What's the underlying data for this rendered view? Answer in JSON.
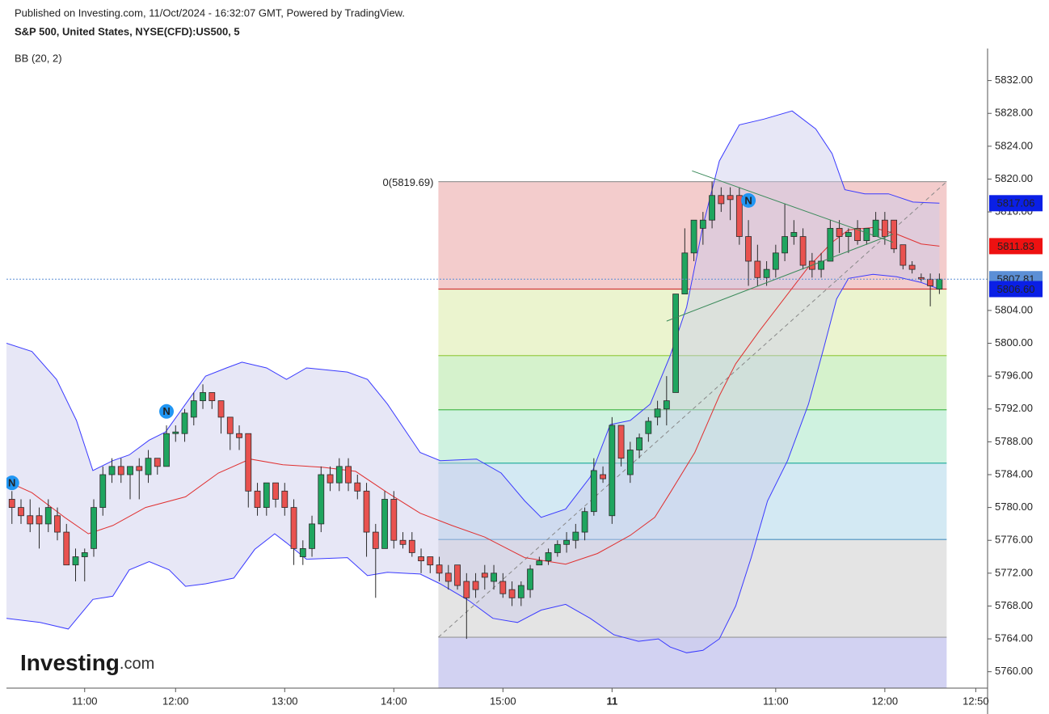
{
  "chart_data": {
    "type": "candlestick",
    "published": "Published on Investing.com, 11/Oct/2024 - 16:32:07 GMT, Powered by TradingView.",
    "title": "S&P 500, United States, NYSE(CFD):US500, 5",
    "indicator_label": "BB (20, 2)",
    "logo": {
      "name": "Investing",
      "suffix": ".com"
    },
    "up_color": "#1fa55f",
    "down_color": "#e9524f",
    "ohlc": [
      [
        5781,
        5782,
        5778,
        5780
      ],
      [
        5780,
        5781,
        5778,
        5779
      ],
      [
        5779,
        5781,
        5777,
        5778
      ],
      [
        5779,
        5780,
        5775,
        5778
      ],
      [
        5778,
        5781,
        5777,
        5780
      ],
      [
        5779,
        5780,
        5776,
        5777
      ],
      [
        5777,
        5778,
        5773,
        5773
      ],
      [
        5773,
        5775,
        5771,
        5774
      ],
      [
        5774,
        5775,
        5771,
        5774.5
      ],
      [
        5775,
        5781,
        5774,
        5780
      ],
      [
        5780,
        5785,
        5779,
        5784
      ],
      [
        5784,
        5786,
        5783,
        5785
      ],
      [
        5785,
        5786,
        5783,
        5784
      ],
      [
        5784,
        5785,
        5781,
        5785
      ],
      [
        5785,
        5786,
        5781,
        5784.5
      ],
      [
        5784,
        5787,
        5783,
        5786
      ],
      [
        5786,
        5786,
        5784,
        5785
      ],
      [
        5785,
        5790,
        5785,
        5789
      ],
      [
        5789,
        5790,
        5788,
        5789.2
      ],
      [
        5789,
        5792,
        5788,
        5791.5
      ],
      [
        5791,
        5794,
        5790,
        5793
      ],
      [
        5793,
        5795,
        5792,
        5794
      ],
      [
        5794,
        5794,
        5792,
        5793
      ],
      [
        5793,
        5793,
        5789,
        5791
      ],
      [
        5791,
        5791,
        5787,
        5789
      ],
      [
        5789,
        5790,
        5787,
        5788.5
      ],
      [
        5789,
        5789,
        5780,
        5782
      ],
      [
        5782,
        5783,
        5779,
        5780
      ],
      [
        5780,
        5783,
        5779,
        5783
      ],
      [
        5783,
        5783,
        5780,
        5781
      ],
      [
        5782,
        5783,
        5779,
        5780
      ],
      [
        5780,
        5781,
        5773,
        5775
      ],
      [
        5774,
        5776,
        5773,
        5775
      ],
      [
        5775,
        5779,
        5774,
        5778
      ],
      [
        5778,
        5785,
        5777,
        5784
      ],
      [
        5784,
        5785,
        5782,
        5783
      ],
      [
        5783,
        5786,
        5782,
        5785
      ],
      [
        5785,
        5786,
        5782,
        5783
      ],
      [
        5783,
        5784,
        5781,
        5782
      ],
      [
        5782,
        5783,
        5774,
        5777
      ],
      [
        5777,
        5778,
        5769,
        5775
      ],
      [
        5775,
        5782,
        5775,
        5781
      ],
      [
        5781,
        5782,
        5775,
        5776
      ],
      [
        5776,
        5777,
        5775,
        5775.5
      ],
      [
        5776,
        5777,
        5774,
        5774.5
      ],
      [
        5774,
        5775,
        5772,
        5773.5
      ],
      [
        5774,
        5774,
        5772,
        5773
      ],
      [
        5773,
        5774,
        5771,
        5772
      ],
      [
        5772,
        5773,
        5770,
        5771
      ],
      [
        5773,
        5773,
        5770,
        5770.5
      ],
      [
        5771,
        5772,
        5764,
        5769
      ],
      [
        5771,
        5772,
        5769,
        5770
      ],
      [
        5772,
        5773,
        5770,
        5771.5
      ],
      [
        5771,
        5773,
        5770,
        5772
      ],
      [
        5771,
        5772,
        5769,
        5769.5
      ],
      [
        5770,
        5771,
        5768,
        5769
      ],
      [
        5769,
        5771,
        5768,
        5770.5
      ],
      [
        5770,
        5773,
        5769,
        5772.5
      ],
      [
        5773,
        5774,
        5773,
        5773.5
      ],
      [
        5773.5,
        5775,
        5773,
        5774.5
      ],
      [
        5774.5,
        5776,
        5774,
        5775.5
      ],
      [
        5775.5,
        5777,
        5774.5,
        5776
      ],
      [
        5776,
        5778,
        5775,
        5777
      ],
      [
        5777,
        5780,
        5776,
        5779.5
      ],
      [
        5779.5,
        5786,
        5779,
        5784.5
      ],
      [
        5784,
        5785,
        5783,
        5783.5
      ],
      [
        5779,
        5791,
        5778,
        5790
      ],
      [
        5790,
        5790,
        5785,
        5786
      ],
      [
        5784,
        5788,
        5783,
        5787
      ],
      [
        5787,
        5789,
        5786,
        5788.5
      ],
      [
        5789,
        5791,
        5788,
        5790.5
      ],
      [
        5791,
        5793,
        5790,
        5792
      ],
      [
        5792,
        5796,
        5790,
        5793
      ],
      [
        5794,
        5806,
        5794,
        5806
      ],
      [
        5806,
        5814,
        5806,
        5811
      ],
      [
        5811,
        5815,
        5810,
        5815
      ],
      [
        5814,
        5816,
        5812,
        5815
      ],
      [
        5815,
        5819.69,
        5814,
        5818
      ],
      [
        5818,
        5819,
        5816,
        5817
      ],
      [
        5818,
        5819,
        5815,
        5817.5
      ],
      [
        5818,
        5819,
        5812,
        5813
      ],
      [
        5813,
        5815,
        5807,
        5810
      ],
      [
        5810,
        5812,
        5807,
        5808
      ],
      [
        5808,
        5810,
        5807,
        5809
      ],
      [
        5809,
        5812,
        5808,
        5811
      ],
      [
        5811,
        5817,
        5810,
        5813
      ],
      [
        5813,
        5815,
        5812,
        5813.5
      ],
      [
        5813,
        5814,
        5809,
        5809.5
      ],
      [
        5810,
        5811,
        5808,
        5809
      ],
      [
        5809,
        5811,
        5808,
        5810
      ],
      [
        5810,
        5815,
        5810,
        5814
      ],
      [
        5814,
        5815,
        5811,
        5813
      ],
      [
        5813,
        5814,
        5811,
        5813.5
      ],
      [
        5814,
        5815,
        5812,
        5812.5
      ],
      [
        5812.5,
        5814,
        5812,
        5814
      ],
      [
        5813,
        5816,
        5813,
        5815
      ],
      [
        5815,
        5816,
        5812,
        5813
      ],
      [
        5815,
        5815,
        5811,
        5811.5
      ],
      [
        5812,
        5812,
        5809,
        5809.5
      ],
      [
        5809.5,
        5810,
        5808.5,
        5809
      ],
      [
        5808,
        5808.5,
        5807.5,
        5807.8
      ],
      [
        5807.8,
        5808.5,
        5804.5,
        5807
      ],
      [
        5806.6,
        5808.5,
        5806,
        5807.81
      ]
    ],
    "bands": {
      "fill": "#c9c9ea",
      "upper": {
        "color": "#3a3aff",
        "x": [
          -0.6,
          2.2,
          4.9,
          7.1,
          8.9,
          11.1,
          12.9,
          15.1,
          16.9,
          19.1,
          21.3,
          23.6,
          25.3,
          28,
          30.2,
          32.4,
          36.9,
          39.1,
          41.3,
          44.9,
          47.1,
          51.1,
          53.8,
          56.4,
          58.2,
          60.9,
          63.6,
          65.8,
          68,
          70.2,
          72.4,
          74.2,
          76,
          77.8,
          80,
          82.7,
          85.8,
          88.4,
          90.2,
          91.6,
          93.8,
          96.4,
          99.1,
          102
        ],
        "values": [
          5800,
          5799,
          5795.6,
          5790.6,
          5784.5,
          5785.7,
          5786.4,
          5788.2,
          5789.2,
          5792.6,
          5796,
          5797,
          5797.7,
          5797,
          5795.6,
          5797,
          5796.5,
          5795.6,
          5792.6,
          5786.7,
          5785.7,
          5785.9,
          5784.2,
          5780.8,
          5778.8,
          5779.8,
          5783.7,
          5790.1,
          5790.6,
          5792.6,
          5798.5,
          5804.4,
          5814.3,
          5822.2,
          5826.6,
          5827.3,
          5828.3,
          5826.1,
          5823.1,
          5818.7,
          5818.2,
          5818.2,
          5817.2,
          5817.06
        ]
      },
      "middle": {
        "color": "#e03030",
        "x": [
          -0.6,
          2.2,
          5.8,
          8.4,
          11.1,
          14.7,
          19.1,
          22.7,
          26.2,
          29.8,
          34.2,
          37.8,
          41.3,
          44.9,
          48.4,
          52,
          56.4,
          60.9,
          64.4,
          68,
          70.7,
          72.4,
          75.1,
          77.8,
          79.6,
          82.2,
          84.9,
          87.6,
          90.2,
          92,
          94.7,
          97.3,
          100,
          102
        ],
        "values": [
          5783.2,
          5781.8,
          5778.8,
          5776.8,
          5777.8,
          5780,
          5781.3,
          5784.2,
          5785.9,
          5785.2,
          5784.9,
          5784.4,
          5781.8,
          5779.3,
          5777.8,
          5776.4,
          5773.9,
          5773.1,
          5774.4,
          5776.6,
          5778.8,
          5781.8,
          5786.7,
          5793.6,
          5797.5,
          5801.5,
          5805.4,
          5809.3,
          5812.3,
          5813.8,
          5814.1,
          5813.3,
          5812.1,
          5811.83
        ]
      },
      "lower": {
        "color": "#3a3aff",
        "x": [
          -0.6,
          3.1,
          6.2,
          8.9,
          11.1,
          12.9,
          15.1,
          17.3,
          19.1,
          21.3,
          24.4,
          26.7,
          28.9,
          30.2,
          32.4,
          36.9,
          39.1,
          41.3,
          44.9,
          47.1,
          50.2,
          52.9,
          55.6,
          58.2,
          60.9,
          63.6,
          66.2,
          68.9,
          71.1,
          72.4,
          74.2,
          76,
          77.8,
          79.6,
          81.3,
          83.1,
          85.3,
          87.6,
          89.3,
          90.7,
          92,
          94.7,
          97.3,
          100,
          102
        ],
        "values": [
          5766.5,
          5766,
          5765.2,
          5768.8,
          5769.2,
          5772.4,
          5773.4,
          5772.4,
          5770.4,
          5770.7,
          5771.4,
          5774.9,
          5776.8,
          5775.7,
          5773.7,
          5773.9,
          5771.7,
          5772.1,
          5771.9,
          5770.7,
          5768.7,
          5766.5,
          5766,
          5767.5,
          5768.2,
          5766.5,
          5764.5,
          5763.7,
          5764,
          5763,
          5762.3,
          5762.6,
          5764,
          5768,
          5773.9,
          5780.8,
          5785.7,
          5792.6,
          5799.5,
          5805.4,
          5807.9,
          5808.4,
          5808.1,
          5807.4,
          5806.6
        ]
      }
    },
    "fib": {
      "label": "0(5819.69)",
      "x_start": 46.9,
      "x_end": 102.8,
      "levels": [
        5819.69,
        5806.6,
        5798.5,
        5791.9,
        5785.4,
        5776.1,
        5764.2
      ],
      "line_colors": [
        "#999999",
        "#d33a3a",
        "#9acd4a",
        "#4cba50",
        "#2ab0a0",
        "#4a90c2",
        "#999999"
      ],
      "zone_colors": [
        "#f3cccc",
        "#ebf4cf",
        "#d5f2cc",
        "#cff2e0",
        "#d3e9f3",
        "#e4e4e4",
        "#d2d2f2"
      ],
      "trend_color": "#888888"
    },
    "trend_lines": [
      {
        "x": [
          74.8,
          96.9
        ],
        "y": [
          5821,
          5812.3
        ]
      },
      {
        "x": [
          72,
          96.9
        ],
        "y": [
          5802.7,
          5813.3
        ]
      }
    ],
    "trend_color": "#3a8a5a",
    "markers": [
      {
        "x": 0,
        "y": 5783,
        "label": "N"
      },
      {
        "x": 17,
        "y": 5791.7,
        "label": "N"
      },
      {
        "x": 81,
        "y": 5817.4,
        "label": "N"
      }
    ],
    "marker_color": "#2196f3",
    "price_tags": [
      {
        "value": 5817.06,
        "color": "#0a1fe6"
      },
      {
        "value": 5811.83,
        "color": "#ee1111"
      },
      {
        "value": 5807.81,
        "color": "#5b8fd6",
        "line": true
      },
      {
        "value": 5806.6,
        "label": "5806.60",
        "color": "#0a1fe6"
      }
    ],
    "xlim": [
      -0.6,
      107.3
    ],
    "ylim": [
      5758,
      5835.9
    ],
    "xticks": [
      {
        "value": 8,
        "label": "11:00"
      },
      {
        "value": 18,
        "label": "12:00"
      },
      {
        "value": 30,
        "label": "13:00"
      },
      {
        "value": 42,
        "label": "14:00"
      },
      {
        "value": 54,
        "label": "15:00"
      },
      {
        "value": 66,
        "label": "11",
        "bold": true
      },
      {
        "value": 84,
        "label": "11:00"
      },
      {
        "value": 96,
        "label": "12:00"
      },
      {
        "value": 106,
        "label": "12:50"
      }
    ],
    "yticks": [
      {
        "value": 5760,
        "label": "5760.00"
      },
      {
        "value": 5764,
        "label": "5764.00"
      },
      {
        "value": 5768,
        "label": "5768.00"
      },
      {
        "value": 5772,
        "label": "5772.00"
      },
      {
        "value": 5776,
        "label": "5776.00"
      },
      {
        "value": 5780,
        "label": "5780.00"
      },
      {
        "value": 5784,
        "label": "5784.00"
      },
      {
        "value": 5788,
        "label": "5788.00"
      },
      {
        "value": 5792,
        "label": "5792.00"
      },
      {
        "value": 5796,
        "label": "5796.00"
      },
      {
        "value": 5800,
        "label": "5800.00"
      },
      {
        "value": 5804,
        "label": "5804.00"
      },
      {
        "value": 5816,
        "label": "5816.00"
      },
      {
        "value": 5820,
        "label": "5820.00"
      },
      {
        "value": 5824,
        "label": "5824.00"
      },
      {
        "value": 5828,
        "label": "5828.00"
      },
      {
        "value": 5832,
        "label": "5832.00"
      }
    ]
  }
}
